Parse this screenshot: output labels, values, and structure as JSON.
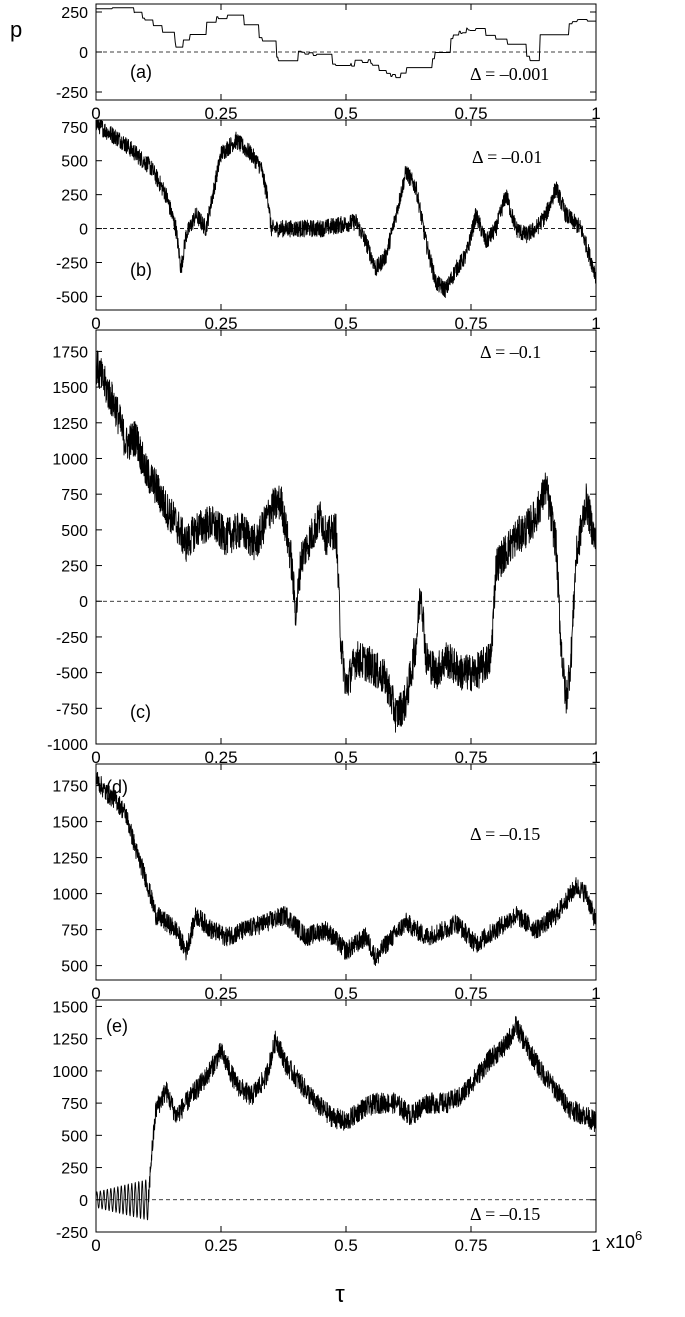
{
  "figure": {
    "ylabel": "p",
    "xlabel": "τ",
    "x_multiplier": "x10",
    "x_multiplier_exp": "6"
  },
  "chart_data": [
    {
      "type": "line",
      "panel": "(a)",
      "annotation": "Δ = –0.001",
      "xlim": [
        0,
        1
      ],
      "ylim": [
        -300,
        300
      ],
      "yticks": [
        -250,
        0,
        250
      ],
      "ytick_labels": [
        "-250",
        "0",
        "250"
      ],
      "xticks": [
        0,
        0.25,
        0.5,
        0.75,
        1
      ],
      "xtick_labels": [
        "0",
        "0.25",
        "0.5",
        "0.75",
        "1"
      ],
      "reference_line": 0,
      "grid": false,
      "series": [
        {
          "style": "step",
          "x": [
            0,
            0.03,
            0.06,
            0.09,
            0.12,
            0.15,
            0.16,
            0.2,
            0.25,
            0.3,
            0.34,
            0.35,
            0.37,
            0.4,
            0.43,
            0.47,
            0.5,
            0.54,
            0.57,
            0.6,
            0.63,
            0.67,
            0.7,
            0.73,
            0.75,
            0.78,
            0.82,
            0.85,
            0.87,
            0.88,
            0.9,
            0.94,
            0.97,
            1
          ],
          "y": [
            270,
            280,
            260,
            230,
            150,
            80,
            40,
            150,
            230,
            180,
            50,
            0,
            -80,
            20,
            -20,
            -60,
            -90,
            -40,
            -110,
            -150,
            -80,
            -40,
            60,
            120,
            150,
            110,
            40,
            -10,
            -50,
            50,
            150,
            180,
            200,
            150
          ]
        }
      ]
    },
    {
      "type": "line",
      "panel": "(b)",
      "annotation": "Δ = –0.01",
      "xlim": [
        0,
        1
      ],
      "ylim": [
        -600,
        800
      ],
      "yticks": [
        -500,
        -250,
        0,
        250,
        500,
        750
      ],
      "ytick_labels": [
        "-500",
        "-250",
        "0",
        "250",
        "500",
        "750"
      ],
      "xticks": [
        0,
        0.25,
        0.5,
        0.75,
        1
      ],
      "xtick_labels": [
        "0",
        "0.25",
        "0.5",
        "0.75",
        "1"
      ],
      "reference_line": 0,
      "grid": false,
      "series": [
        {
          "style": "noisy",
          "x": [
            0,
            0.02,
            0.05,
            0.08,
            0.11,
            0.14,
            0.16,
            0.17,
            0.18,
            0.2,
            0.22,
            0.25,
            0.28,
            0.31,
            0.33,
            0.345,
            0.35,
            0.45,
            0.52,
            0.54,
            0.56,
            0.58,
            0.6,
            0.62,
            0.64,
            0.66,
            0.68,
            0.7,
            0.72,
            0.74,
            0.76,
            0.78,
            0.8,
            0.82,
            0.84,
            0.86,
            0.88,
            0.9,
            0.92,
            0.94,
            0.97,
            1
          ],
          "y": [
            780,
            720,
            650,
            550,
            450,
            250,
            0,
            -300,
            -50,
            100,
            0,
            550,
            650,
            550,
            450,
            200,
            0,
            0,
            50,
            -100,
            -300,
            -200,
            100,
            420,
            300,
            -100,
            -400,
            -450,
            -300,
            -200,
            100,
            -100,
            0,
            250,
            0,
            -50,
            0,
            100,
            300,
            100,
            0,
            -350
          ]
        }
      ]
    },
    {
      "type": "line",
      "panel": "(c)",
      "annotation": "Δ = –0.1",
      "xlim": [
        0,
        1
      ],
      "ylim": [
        -1000,
        1900
      ],
      "yticks": [
        -1000,
        -750,
        -500,
        -250,
        0,
        250,
        500,
        750,
        1000,
        1250,
        1500,
        1750
      ],
      "ytick_labels": [
        "-1000",
        "-750",
        "-500",
        "-250",
        "0",
        "250",
        "500",
        "750",
        "1000",
        "1250",
        "1500",
        "1750"
      ],
      "xticks": [
        0,
        0.25,
        0.5,
        0.75,
        1
      ],
      "xtick_labels": [
        "0",
        "0.25",
        "0.5",
        "0.75",
        "1"
      ],
      "reference_line": 0,
      "grid": false,
      "series": [
        {
          "style": "noisy",
          "x": [
            0,
            0.02,
            0.04,
            0.06,
            0.08,
            0.1,
            0.12,
            0.14,
            0.16,
            0.18,
            0.2,
            0.23,
            0.26,
            0.29,
            0.32,
            0.35,
            0.37,
            0.39,
            0.4,
            0.41,
            0.43,
            0.45,
            0.46,
            0.48,
            0.49,
            0.5,
            0.52,
            0.55,
            0.58,
            0.6,
            0.62,
            0.64,
            0.65,
            0.66,
            0.68,
            0.7,
            0.73,
            0.76,
            0.79,
            0.8,
            0.82,
            0.84,
            0.86,
            0.88,
            0.9,
            0.92,
            0.93,
            0.94,
            0.95,
            0.96,
            0.98,
            1
          ],
          "y": [
            1650,
            1500,
            1350,
            1100,
            1150,
            900,
            800,
            650,
            550,
            400,
            500,
            550,
            450,
            500,
            400,
            650,
            700,
            300,
            -100,
            300,
            450,
            600,
            450,
            500,
            -300,
            -600,
            -400,
            -450,
            -550,
            -800,
            -700,
            -300,
            100,
            -400,
            -500,
            -400,
            -500,
            -500,
            -400,
            250,
            350,
            450,
            500,
            600,
            800,
            400,
            -300,
            -700,
            -400,
            300,
            700,
            400
          ]
        }
      ]
    },
    {
      "type": "line",
      "panel": "(d)",
      "annotation": "Δ = –0.15",
      "xlim": [
        0,
        1
      ],
      "ylim": [
        400,
        1900
      ],
      "yticks": [
        500,
        750,
        1000,
        1250,
        1500,
        1750
      ],
      "ytick_labels": [
        "500",
        "750",
        "1000",
        "1250",
        "1500",
        "1750"
      ],
      "xticks": [
        0,
        0.25,
        0.5,
        0.75,
        1
      ],
      "xtick_labels": [
        "0",
        "0.25",
        "0.5",
        "0.75",
        "1"
      ],
      "reference_line": null,
      "grid": false,
      "series": [
        {
          "style": "noisy",
          "x": [
            0,
            0.02,
            0.04,
            0.06,
            0.08,
            0.1,
            0.12,
            0.14,
            0.16,
            0.18,
            0.2,
            0.23,
            0.26,
            0.3,
            0.34,
            0.38,
            0.42,
            0.46,
            0.5,
            0.54,
            0.56,
            0.58,
            0.62,
            0.66,
            0.7,
            0.72,
            0.76,
            0.8,
            0.84,
            0.88,
            0.92,
            0.96,
            0.98,
            1
          ],
          "y": [
            1800,
            1700,
            1650,
            1550,
            1300,
            1100,
            850,
            800,
            750,
            600,
            850,
            750,
            700,
            750,
            800,
            850,
            700,
            750,
            600,
            700,
            550,
            650,
            800,
            700,
            750,
            800,
            650,
            750,
            850,
            750,
            850,
            1050,
            1000,
            800
          ]
        }
      ]
    },
    {
      "type": "line",
      "panel": "(e)",
      "annotation": "Δ = –0.15",
      "xlim": [
        0,
        1
      ],
      "ylim": [
        -250,
        1550
      ],
      "yticks": [
        -250,
        0,
        250,
        500,
        750,
        1000,
        1250,
        1500
      ],
      "ytick_labels": [
        "-250",
        "0",
        "250",
        "500",
        "750",
        "1000",
        "1250",
        "1500"
      ],
      "xticks": [
        0,
        0.25,
        0.5,
        0.75,
        1
      ],
      "xtick_labels": [
        "0",
        "0.25",
        "0.5",
        "0.75",
        "1"
      ],
      "reference_line": 0,
      "grid": false,
      "oscillation_until": 0.105,
      "series": [
        {
          "style": "noisy",
          "x": [
            0,
            0.105,
            0.11,
            0.12,
            0.14,
            0.16,
            0.18,
            0.2,
            0.22,
            0.25,
            0.28,
            0.31,
            0.34,
            0.36,
            0.38,
            0.41,
            0.44,
            0.47,
            0.5,
            0.53,
            0.56,
            0.6,
            0.63,
            0.66,
            0.7,
            0.73,
            0.76,
            0.79,
            0.82,
            0.84,
            0.86,
            0.89,
            0.92,
            0.95,
            0.98,
            1
          ],
          "y": [
            0,
            0,
            300,
            700,
            850,
            650,
            750,
            850,
            950,
            1150,
            900,
            800,
            950,
            1250,
            1050,
            900,
            750,
            650,
            600,
            700,
            750,
            750,
            650,
            750,
            750,
            800,
            950,
            1100,
            1200,
            1350,
            1200,
            1000,
            850,
            700,
            650,
            600
          ]
        }
      ]
    }
  ]
}
